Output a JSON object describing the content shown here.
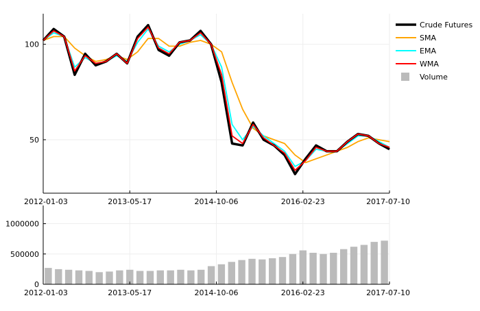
{
  "chart_data": {
    "type": "line",
    "x_tick_labels": [
      "2012-01-03",
      "2013-05-17",
      "2014-10-06",
      "2016-02-23",
      "2017-07-10"
    ],
    "x": [
      "2012-01",
      "2012-03",
      "2012-05",
      "2012-07",
      "2012-09",
      "2012-11",
      "2013-01",
      "2013-03",
      "2013-05",
      "2013-07",
      "2013-09",
      "2013-11",
      "2014-01",
      "2014-03",
      "2014-05",
      "2014-07",
      "2014-09",
      "2014-11",
      "2015-01",
      "2015-03",
      "2015-05",
      "2015-07",
      "2015-09",
      "2015-11",
      "2016-01",
      "2016-03",
      "2016-05",
      "2016-07",
      "2016-09",
      "2016-11",
      "2017-01",
      "2017-03",
      "2017-05",
      "2017-07"
    ],
    "price": {
      "ylim": [
        22,
        116
      ],
      "y_tick_values": [
        50,
        100
      ],
      "y_tick_labels": [
        "50",
        "100"
      ],
      "series": [
        {
          "name": "Crude Futures",
          "color": "#000000",
          "values": [
            102,
            108,
            104,
            84,
            95,
            89,
            91,
            95,
            90,
            104,
            110,
            97,
            94,
            101,
            102,
            107,
            100,
            80,
            48,
            47,
            59,
            50,
            47,
            42,
            32,
            40,
            47,
            44,
            44,
            49,
            53,
            52,
            48,
            45
          ]
        },
        {
          "name": "SMA",
          "color": "#FFA500",
          "values": [
            102,
            104,
            104,
            98,
            94,
            91,
            92,
            94,
            92,
            96,
            103,
            103,
            99,
            99,
            101,
            102,
            100,
            96,
            80,
            66,
            56,
            52,
            50,
            48,
            42,
            38,
            40,
            42,
            44,
            46,
            49,
            51,
            50,
            49
          ]
        },
        {
          "name": "EMA",
          "color": "#00FFFF",
          "values": [
            102,
            106,
            104,
            88,
            93,
            90,
            91,
            94,
            91,
            101,
            108,
            99,
            96,
            100,
            102,
            105,
            100,
            88,
            58,
            50,
            57,
            52,
            48,
            44,
            36,
            39,
            45,
            44,
            44,
            48,
            52,
            52,
            49,
            46
          ]
        },
        {
          "name": "WMA",
          "color": "#FF0000",
          "values": [
            102,
            107,
            104,
            86,
            94,
            90,
            91,
            95,
            90,
            103,
            109,
            98,
            95,
            101,
            102,
            106,
            100,
            84,
            52,
            48,
            58,
            51,
            47,
            43,
            34,
            39,
            46,
            44,
            44,
            49,
            53,
            52,
            48,
            46
          ]
        }
      ]
    },
    "volume": {
      "name": "Volume",
      "color": "#BBBBBB",
      "ylim": [
        0,
        1300000
      ],
      "y_tick_values": [
        0,
        500000,
        1000000
      ],
      "y_tick_labels": [
        "0",
        "500000",
        "1000000"
      ],
      "values": [
        270000,
        250000,
        240000,
        230000,
        220000,
        200000,
        210000,
        230000,
        240000,
        220000,
        220000,
        230000,
        230000,
        240000,
        230000,
        240000,
        300000,
        330000,
        370000,
        400000,
        420000,
        410000,
        430000,
        450000,
        500000,
        560000,
        520000,
        500000,
        520000,
        580000,
        620000,
        650000,
        700000,
        720000
      ]
    },
    "legend": {
      "position": "top-right",
      "items": [
        "Crude Futures",
        "SMA",
        "EMA",
        "WMA",
        "Volume"
      ]
    },
    "grid": true
  }
}
